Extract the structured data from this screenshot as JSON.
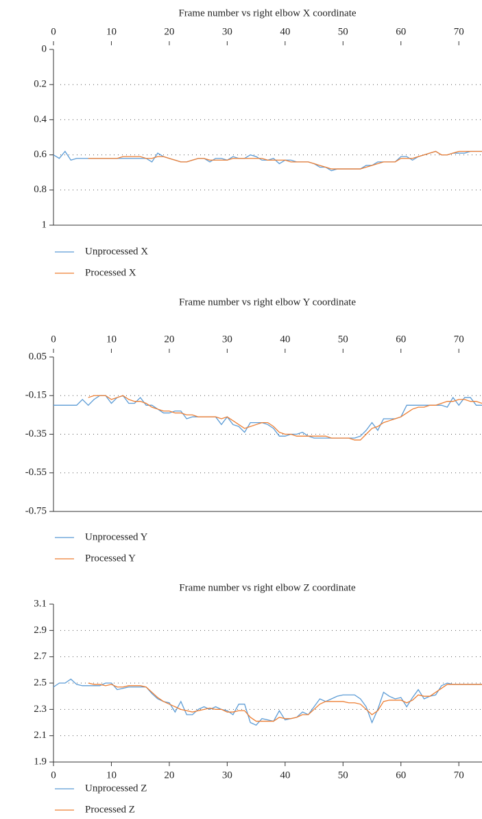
{
  "chart_data": [
    {
      "type": "line",
      "title": "Frame number vs right elbow X coordinate",
      "x_axis_position": "top",
      "y_inverted": true,
      "grid": true,
      "x": [
        0,
        1,
        2,
        3,
        4,
        5,
        6,
        7,
        8,
        9,
        10,
        11,
        12,
        13,
        14,
        15,
        16,
        17,
        18,
        19,
        20,
        21,
        22,
        23,
        24,
        25,
        26,
        27,
        28,
        29,
        30,
        31,
        32,
        33,
        34,
        35,
        36,
        37,
        38,
        39,
        40,
        41,
        42,
        43,
        44,
        45,
        46,
        47,
        48,
        49,
        50,
        51,
        52,
        53,
        54,
        55,
        56,
        57,
        58,
        59,
        60,
        61,
        62,
        63,
        64,
        65,
        66,
        67,
        68,
        69,
        70,
        71,
        72,
        73,
        74
      ],
      "xlim": [
        0,
        74
      ],
      "xticks": [
        0,
        10,
        20,
        30,
        40,
        50,
        60,
        70
      ],
      "ylim": [
        0,
        1
      ],
      "yticks": [
        0,
        0.2,
        0.4,
        0.6,
        0.8,
        1
      ],
      "series": [
        {
          "name": "Unprocessed X",
          "color": "#5b9bd5",
          "values": [
            0.6,
            0.62,
            0.58,
            0.63,
            0.62,
            0.62,
            0.62,
            0.62,
            0.62,
            0.62,
            0.62,
            0.62,
            0.62,
            0.62,
            0.62,
            0.62,
            0.62,
            0.64,
            0.59,
            0.61,
            0.62,
            0.63,
            0.64,
            0.64,
            0.63,
            0.62,
            0.62,
            0.64,
            0.62,
            0.62,
            0.63,
            0.61,
            0.62,
            0.62,
            0.6,
            0.61,
            0.63,
            0.63,
            0.62,
            0.65,
            0.63,
            0.63,
            0.64,
            0.64,
            0.64,
            0.65,
            0.67,
            0.67,
            0.69,
            0.68,
            0.68,
            0.68,
            0.68,
            0.68,
            0.66,
            0.66,
            0.64,
            0.64,
            0.64,
            0.64,
            0.61,
            0.61,
            0.63,
            0.61,
            0.6,
            0.59,
            0.58,
            0.6,
            0.6,
            0.59,
            0.59,
            0.59,
            0.58,
            0.58,
            0.58
          ]
        },
        {
          "name": "Processed X",
          "color": "#ed7d31",
          "values": [
            null,
            null,
            null,
            null,
            null,
            null,
            0.62,
            0.62,
            0.62,
            0.62,
            0.62,
            0.62,
            0.61,
            0.61,
            0.61,
            0.61,
            0.62,
            0.62,
            0.61,
            0.61,
            0.62,
            0.63,
            0.64,
            0.64,
            0.63,
            0.62,
            0.62,
            0.63,
            0.63,
            0.63,
            0.63,
            0.62,
            0.62,
            0.62,
            0.62,
            0.62,
            0.62,
            0.63,
            0.63,
            0.63,
            0.63,
            0.64,
            0.64,
            0.64,
            0.64,
            0.65,
            0.66,
            0.67,
            0.68,
            0.68,
            0.68,
            0.68,
            0.68,
            0.68,
            0.67,
            0.66,
            0.65,
            0.64,
            0.64,
            0.64,
            0.62,
            0.62,
            0.62,
            0.61,
            0.6,
            0.59,
            0.58,
            0.6,
            0.6,
            0.59,
            0.58,
            0.58,
            0.58,
            0.58,
            0.58
          ]
        }
      ]
    },
    {
      "type": "line",
      "title": "Frame number vs right elbow Y coordinate",
      "x_axis_position": "top",
      "y_inverted": false,
      "grid": true,
      "x": [
        0,
        1,
        2,
        3,
        4,
        5,
        6,
        7,
        8,
        9,
        10,
        11,
        12,
        13,
        14,
        15,
        16,
        17,
        18,
        19,
        20,
        21,
        22,
        23,
        24,
        25,
        26,
        27,
        28,
        29,
        30,
        31,
        32,
        33,
        34,
        35,
        36,
        37,
        38,
        39,
        40,
        41,
        42,
        43,
        44,
        45,
        46,
        47,
        48,
        49,
        50,
        51,
        52,
        53,
        54,
        55,
        56,
        57,
        58,
        59,
        60,
        61,
        62,
        63,
        64,
        65,
        66,
        67,
        68,
        69,
        70,
        71,
        72,
        73,
        74
      ],
      "xlim": [
        0,
        74
      ],
      "xticks": [
        0,
        10,
        20,
        30,
        40,
        50,
        60,
        70
      ],
      "ylim": [
        -0.75,
        0.05
      ],
      "yticks": [
        0.05,
        -0.15,
        -0.35,
        -0.55,
        -0.75
      ],
      "series": [
        {
          "name": "Unprocessed Y",
          "color": "#5b9bd5",
          "values": [
            -0.2,
            -0.2,
            -0.2,
            -0.2,
            -0.2,
            -0.17,
            -0.2,
            -0.17,
            -0.15,
            -0.15,
            -0.19,
            -0.16,
            -0.15,
            -0.19,
            -0.19,
            -0.16,
            -0.2,
            -0.2,
            -0.22,
            -0.24,
            -0.24,
            -0.23,
            -0.23,
            -0.27,
            -0.26,
            -0.26,
            -0.26,
            -0.26,
            -0.26,
            -0.3,
            -0.26,
            -0.3,
            -0.31,
            -0.34,
            -0.29,
            -0.29,
            -0.29,
            -0.3,
            -0.32,
            -0.36,
            -0.36,
            -0.35,
            -0.35,
            -0.34,
            -0.36,
            -0.37,
            -0.37,
            -0.37,
            -0.37,
            -0.37,
            -0.37,
            -0.37,
            -0.37,
            -0.36,
            -0.33,
            -0.29,
            -0.33,
            -0.27,
            -0.27,
            -0.27,
            -0.26,
            -0.2,
            -0.2,
            -0.2,
            -0.2,
            -0.2,
            -0.2,
            -0.2,
            -0.21,
            -0.16,
            -0.2,
            -0.16,
            -0.16,
            -0.2,
            -0.2
          ]
        },
        {
          "name": "Processed Y",
          "color": "#ed7d31",
          "values": [
            null,
            null,
            null,
            null,
            null,
            null,
            -0.16,
            -0.15,
            -0.15,
            -0.15,
            -0.17,
            -0.16,
            -0.15,
            -0.17,
            -0.18,
            -0.18,
            -0.19,
            -0.21,
            -0.22,
            -0.23,
            -0.23,
            -0.24,
            -0.24,
            -0.25,
            -0.25,
            -0.26,
            -0.26,
            -0.26,
            -0.26,
            -0.27,
            -0.26,
            -0.28,
            -0.3,
            -0.32,
            -0.31,
            -0.3,
            -0.29,
            -0.29,
            -0.31,
            -0.34,
            -0.35,
            -0.35,
            -0.36,
            -0.36,
            -0.36,
            -0.36,
            -0.36,
            -0.36,
            -0.37,
            -0.37,
            -0.37,
            -0.37,
            -0.38,
            -0.38,
            -0.35,
            -0.32,
            -0.31,
            -0.29,
            -0.28,
            -0.27,
            -0.26,
            -0.24,
            -0.22,
            -0.21,
            -0.21,
            -0.2,
            -0.2,
            -0.19,
            -0.18,
            -0.18,
            -0.17,
            -0.17,
            -0.18,
            -0.18,
            -0.19
          ]
        }
      ]
    },
    {
      "type": "line",
      "title": "Frame number vs right elbow Z coordinate",
      "x_axis_position": "bottom",
      "y_inverted": false,
      "grid": true,
      "x": [
        0,
        1,
        2,
        3,
        4,
        5,
        6,
        7,
        8,
        9,
        10,
        11,
        12,
        13,
        14,
        15,
        16,
        17,
        18,
        19,
        20,
        21,
        22,
        23,
        24,
        25,
        26,
        27,
        28,
        29,
        30,
        31,
        32,
        33,
        34,
        35,
        36,
        37,
        38,
        39,
        40,
        41,
        42,
        43,
        44,
        45,
        46,
        47,
        48,
        49,
        50,
        51,
        52,
        53,
        54,
        55,
        56,
        57,
        58,
        59,
        60,
        61,
        62,
        63,
        64,
        65,
        66,
        67,
        68,
        69,
        70,
        71,
        72,
        73,
        74
      ],
      "xlim": [
        0,
        74
      ],
      "xticks": [
        0,
        10,
        20,
        30,
        40,
        50,
        60,
        70
      ],
      "ylim": [
        1.9,
        3.1
      ],
      "yticks": [
        3.1,
        2.9,
        2.7,
        2.5,
        2.3,
        2.1,
        1.9
      ],
      "series": [
        {
          "name": "Unprocessed Z",
          "color": "#5b9bd5",
          "values": [
            2.47,
            2.5,
            2.5,
            2.53,
            2.49,
            2.48,
            2.48,
            2.48,
            2.48,
            2.5,
            2.5,
            2.45,
            2.46,
            2.47,
            2.47,
            2.47,
            2.47,
            2.42,
            2.38,
            2.36,
            2.35,
            2.28,
            2.36,
            2.26,
            2.26,
            2.3,
            2.32,
            2.3,
            2.32,
            2.3,
            2.29,
            2.26,
            2.34,
            2.34,
            2.2,
            2.18,
            2.23,
            2.22,
            2.21,
            2.29,
            2.22,
            2.23,
            2.24,
            2.28,
            2.26,
            2.32,
            2.38,
            2.36,
            2.38,
            2.4,
            2.41,
            2.41,
            2.41,
            2.38,
            2.32,
            2.2,
            2.3,
            2.43,
            2.4,
            2.38,
            2.39,
            2.32,
            2.39,
            2.45,
            2.38,
            2.4,
            2.41,
            2.48,
            2.5,
            2.49,
            2.49,
            2.49,
            2.49,
            2.49,
            2.49
          ]
        },
        {
          "name": "Processed Z",
          "color": "#ed7d31",
          "values": [
            null,
            null,
            null,
            null,
            null,
            null,
            2.5,
            2.49,
            2.49,
            2.48,
            2.49,
            2.47,
            2.47,
            2.48,
            2.48,
            2.48,
            2.47,
            2.43,
            2.39,
            2.36,
            2.34,
            2.32,
            2.3,
            2.29,
            2.28,
            2.29,
            2.3,
            2.31,
            2.3,
            2.3,
            2.28,
            2.28,
            2.29,
            2.29,
            2.24,
            2.21,
            2.21,
            2.21,
            2.21,
            2.24,
            2.23,
            2.23,
            2.24,
            2.26,
            2.26,
            2.3,
            2.34,
            2.36,
            2.36,
            2.36,
            2.36,
            2.35,
            2.35,
            2.34,
            2.3,
            2.26,
            2.29,
            2.36,
            2.37,
            2.37,
            2.37,
            2.35,
            2.37,
            2.41,
            2.4,
            2.4,
            2.43,
            2.46,
            2.49,
            2.49,
            2.49,
            2.49,
            2.49,
            2.49,
            2.49
          ]
        }
      ]
    }
  ]
}
